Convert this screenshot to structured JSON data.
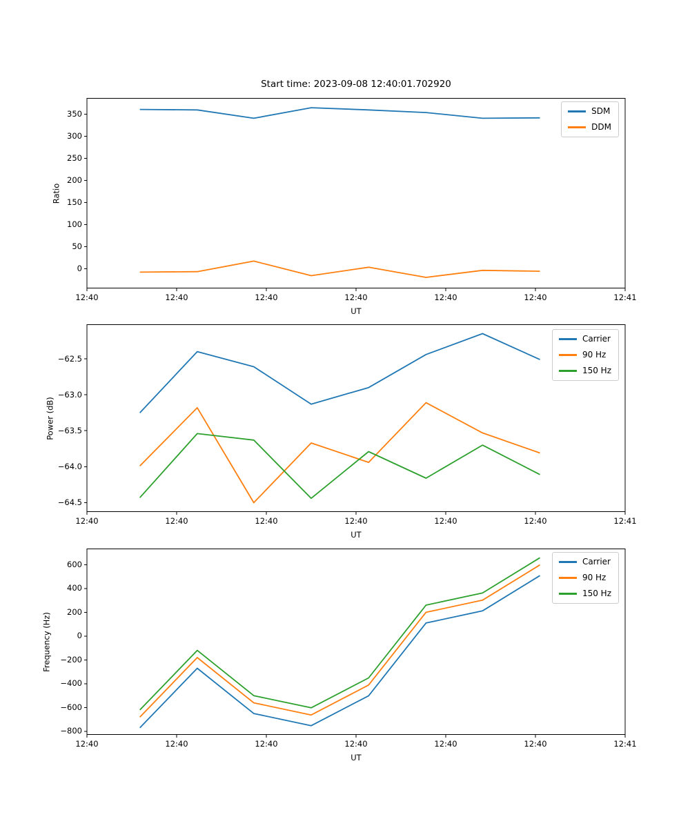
{
  "figure": {
    "title": "Start time: 2023-09-08 12:40:01.702920",
    "background": "#ffffff"
  },
  "chart_data": [
    {
      "type": "line",
      "title": "Start time: 2023-09-08 12:40:01.702920",
      "ylabel": "Ratio",
      "xlabel": "UT",
      "grid": false,
      "legend_position": "upper right",
      "xlim_seconds": [
        0,
        60
      ],
      "xticks_seconds": [
        0,
        10,
        20,
        30,
        40,
        50,
        60
      ],
      "xtick_labels": [
        "12:40",
        "12:40",
        "12:40",
        "12:40",
        "12:40",
        "12:40",
        "12:41"
      ],
      "x_seconds": [
        5.9,
        12.3,
        18.6,
        25.0,
        31.4,
        37.8,
        44.1,
        50.5
      ],
      "ylim": [
        -45,
        387
      ],
      "yticks": [
        0,
        50,
        100,
        150,
        200,
        250,
        300,
        350
      ],
      "ytick_labels": [
        "0",
        "50",
        "100",
        "150",
        "200",
        "250",
        "300",
        "350"
      ],
      "series": [
        {
          "name": "SDM",
          "color": "#1f77b4",
          "values": [
            361,
            360,
            341,
            365,
            360,
            354,
            341,
            342
          ]
        },
        {
          "name": "DDM",
          "color": "#ff7f0e",
          "values": [
            -8,
            -7,
            17,
            -16,
            3,
            -20,
            -4,
            -6
          ]
        }
      ]
    },
    {
      "type": "line",
      "title": "",
      "ylabel": "Power (dB)",
      "xlabel": "UT",
      "grid": false,
      "legend_position": "upper right",
      "xlim_seconds": [
        0,
        60
      ],
      "xticks_seconds": [
        0,
        10,
        20,
        30,
        40,
        50,
        60
      ],
      "xtick_labels": [
        "12:40",
        "12:40",
        "12:40",
        "12:40",
        "12:40",
        "12:40",
        "12:41"
      ],
      "x_seconds": [
        5.9,
        12.3,
        18.6,
        25.0,
        31.4,
        37.8,
        44.1,
        50.5
      ],
      "ylim": [
        -64.63,
        -62.02
      ],
      "yticks": [
        -64.5,
        -64.0,
        -63.5,
        -63.0,
        -62.5
      ],
      "ytick_labels": [
        "−64.5",
        "−64.0",
        "−63.5",
        "−63.0",
        "−62.5"
      ],
      "series": [
        {
          "name": "Carrier",
          "color": "#1f77b4",
          "values": [
            -63.25,
            -62.4,
            -62.61,
            -63.13,
            -62.9,
            -62.44,
            -62.15,
            -62.51
          ]
        },
        {
          "name": "90 Hz",
          "color": "#ff7f0e",
          "values": [
            -63.99,
            -63.18,
            -64.5,
            -63.67,
            -63.94,
            -63.11,
            -63.53,
            -63.81
          ]
        },
        {
          "name": "150 Hz",
          "color": "#2ca02c",
          "values": [
            -64.43,
            -63.54,
            -63.63,
            -64.44,
            -63.79,
            -64.16,
            -63.7,
            -64.11
          ]
        }
      ]
    },
    {
      "type": "line",
      "title": "",
      "ylabel": "Frequency (Hz)",
      "xlabel": "UT",
      "grid": false,
      "legend_position": "upper right",
      "xlim_seconds": [
        0,
        60
      ],
      "xticks_seconds": [
        0,
        10,
        20,
        30,
        40,
        50,
        60
      ],
      "xtick_labels": [
        "12:40",
        "12:40",
        "12:40",
        "12:40",
        "12:40",
        "12:40",
        "12:41"
      ],
      "x_seconds": [
        5.9,
        12.3,
        18.6,
        25.0,
        31.4,
        37.8,
        44.1,
        50.5
      ],
      "ylim": [
        -829,
        735
      ],
      "yticks": [
        -800,
        -600,
        -400,
        -200,
        0,
        200,
        400,
        600
      ],
      "ytick_labels": [
        "−800",
        "−600",
        "−400",
        "−200",
        "0",
        "200",
        "400",
        "600"
      ],
      "series": [
        {
          "name": "Carrier",
          "color": "#1f77b4",
          "values": [
            -770,
            -270,
            -650,
            -752,
            -501,
            110,
            212,
            508
          ]
        },
        {
          "name": "90 Hz",
          "color": "#ff7f0e",
          "values": [
            -680,
            -180,
            -560,
            -662,
            -411,
            200,
            302,
            598
          ]
        },
        {
          "name": "150 Hz",
          "color": "#2ca02c",
          "values": [
            -620,
            -120,
            -500,
            -602,
            -351,
            260,
            362,
            658
          ]
        }
      ]
    }
  ]
}
